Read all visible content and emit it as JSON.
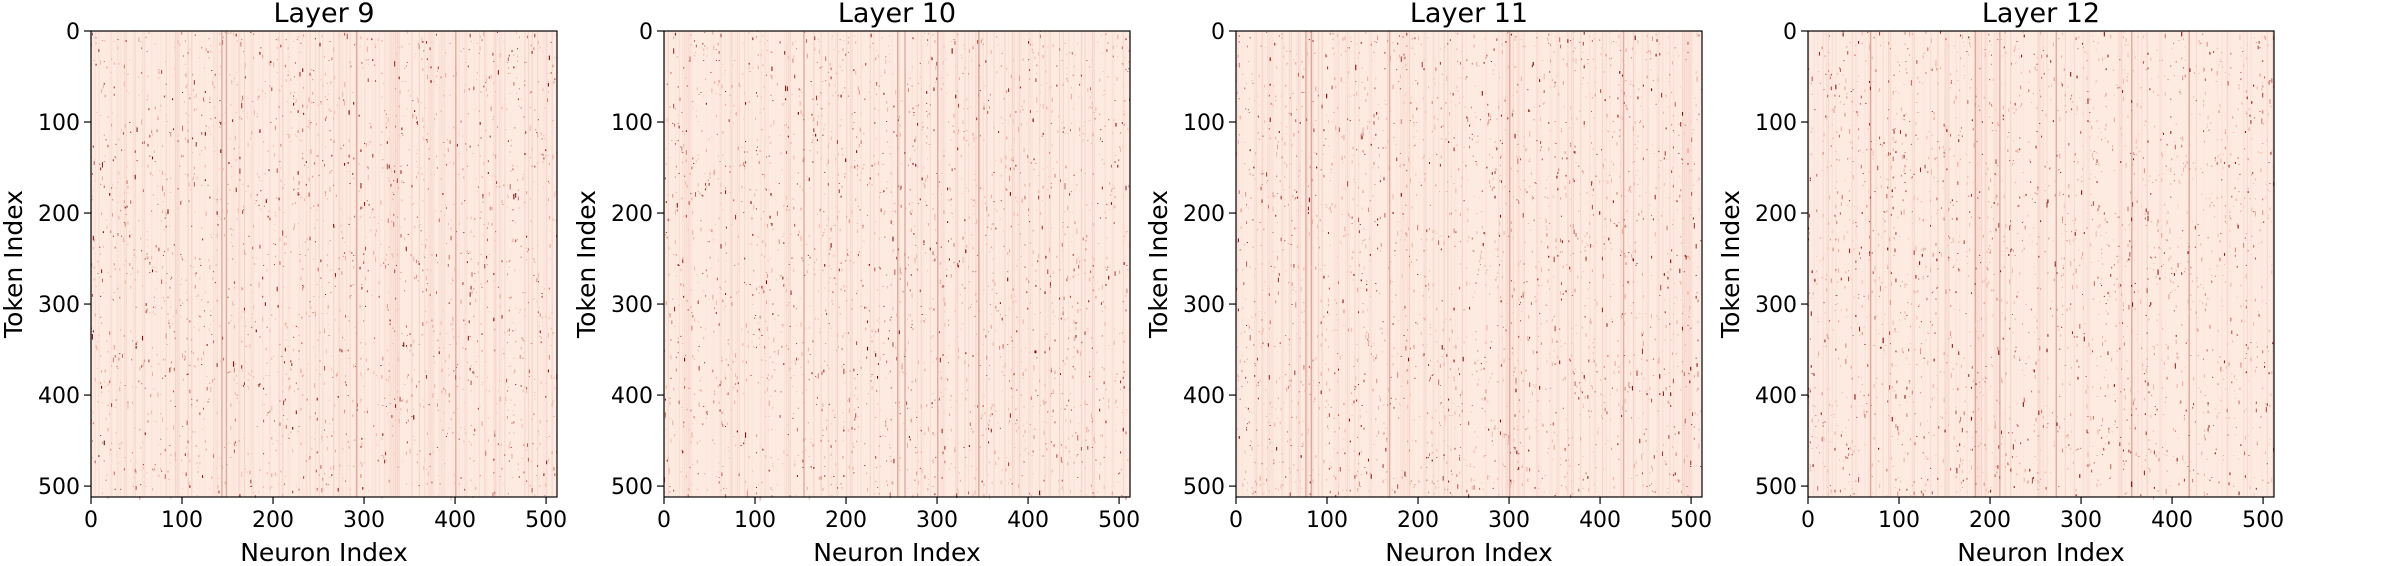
{
  "chart_data": [
    {
      "type": "heatmap",
      "title": "Layer 9",
      "xlabel": "Neuron Index",
      "ylabel": "Token Index",
      "xlim": [
        0,
        512
      ],
      "ylim": [
        512,
        0
      ],
      "x_ticks": [
        "0",
        "100",
        "200",
        "300",
        "400",
        "500"
      ],
      "y_ticks": [
        "0",
        "100",
        "200",
        "300",
        "400",
        "500"
      ],
      "strong_neuron_columns": [
        143,
        148,
        291,
        400
      ],
      "grid": false
    },
    {
      "type": "heatmap",
      "title": "Layer 10",
      "xlabel": "Neuron Index",
      "ylabel": "Token Index",
      "xlim": [
        0,
        512
      ],
      "ylim": [
        512,
        0
      ],
      "x_ticks": [
        "0",
        "100",
        "200",
        "300",
        "400",
        "500"
      ],
      "y_ticks": [
        "0",
        "100",
        "200",
        "300",
        "400",
        "500"
      ],
      "strong_neuron_columns": [
        153,
        256,
        264,
        300,
        345
      ],
      "grid": false
    },
    {
      "type": "heatmap",
      "title": "Layer 11",
      "xlabel": "Neuron Index",
      "ylabel": "Token Index",
      "xlim": [
        0,
        512
      ],
      "ylim": [
        512,
        0
      ],
      "x_ticks": [
        "0",
        "100",
        "200",
        "300",
        "400",
        "500"
      ],
      "y_ticks": [
        "0",
        "100",
        "200",
        "300",
        "400",
        "500"
      ],
      "strong_neuron_columns": [
        76,
        82,
        168,
        300,
        425
      ],
      "grid": false
    },
    {
      "type": "heatmap",
      "title": "Layer 12",
      "xlabel": "Neuron Index",
      "ylabel": "Token Index",
      "xlim": [
        0,
        512
      ],
      "ylim": [
        512,
        0
      ],
      "x_ticks": [
        "0",
        "100",
        "200",
        "300",
        "400",
        "500"
      ],
      "y_ticks": [
        "0",
        "100",
        "200",
        "300",
        "400",
        "500"
      ],
      "strong_neuron_columns": [
        68,
        183,
        210,
        272,
        355,
        418
      ],
      "grid": false
    }
  ],
  "colors": {
    "background_cell": "#fdeae1",
    "colormap_low": "#fff5f0",
    "colormap_mid": "#e8a79a",
    "colormap_high": "#7f0000",
    "axis": "#000000"
  }
}
